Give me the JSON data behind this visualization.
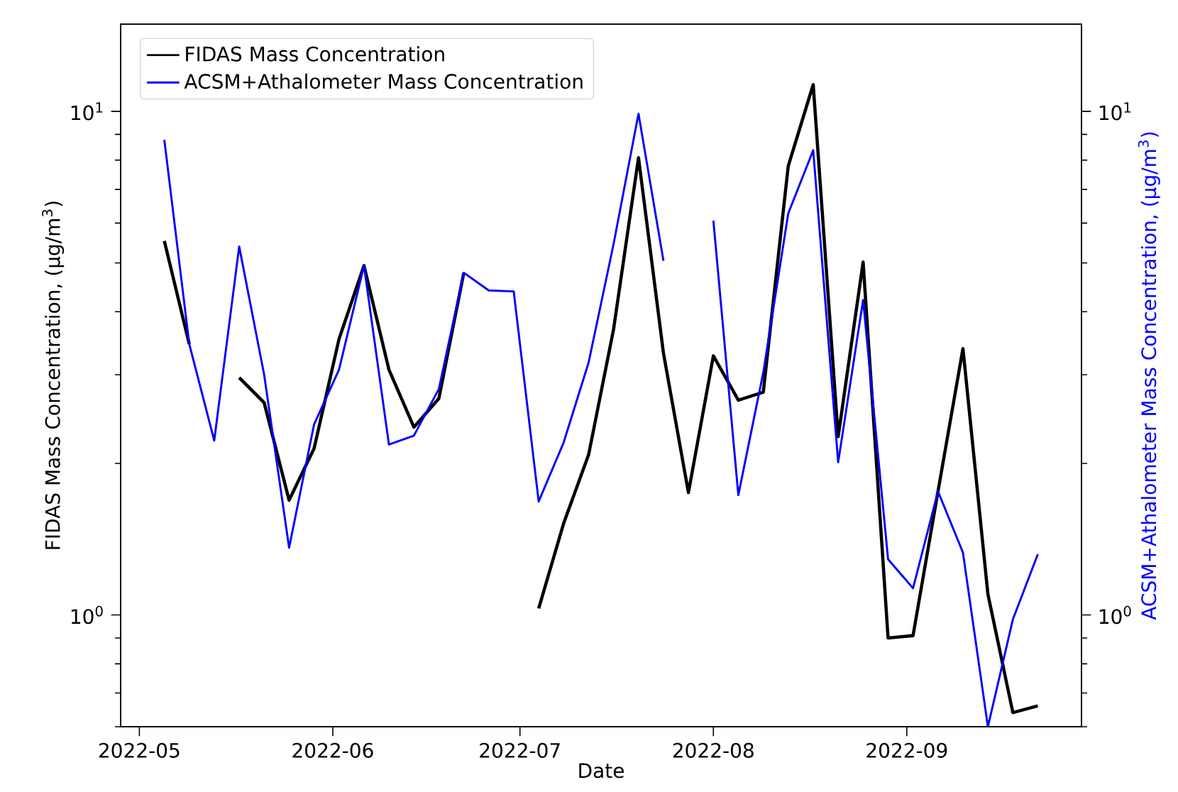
{
  "chart_data": {
    "type": "line",
    "xlabel": "Date",
    "ylabel": "FIDAS Mass Concentration, (μg/m$^{3}$)",
    "y2label": "ACSM+Athalometer Mass Concentration, (μg/m$^{3}$)",
    "x": [
      "2022-05-05",
      "2022-05-09",
      "2022-05-13",
      "2022-05-17",
      "2022-05-21",
      "2022-05-25",
      "2022-05-29",
      "2022-06-02",
      "2022-06-06",
      "2022-06-10",
      "2022-06-14",
      "2022-06-18",
      "2022-06-22",
      "2022-06-26",
      "2022-06-30",
      "2022-07-04",
      "2022-07-08",
      "2022-07-12",
      "2022-07-16",
      "2022-07-20",
      "2022-07-24",
      "2022-07-28",
      "2022-08-01",
      "2022-08-05",
      "2022-08-09",
      "2022-08-13",
      "2022-08-17",
      "2022-08-21",
      "2022-08-25",
      "2022-08-29",
      "2022-09-02",
      "2022-09-06",
      "2022-09-10",
      "2022-09-14",
      "2022-09-18",
      "2022-09-22"
    ],
    "series": [
      {
        "name": "FIDAS Mass Concentration",
        "color": "#000000",
        "values": [
          5.53,
          3.45,
          null,
          2.96,
          2.64,
          1.69,
          2.14,
          3.53,
          4.94,
          3.07,
          2.36,
          2.69,
          4.78,
          null,
          null,
          1.03,
          1.52,
          2.08,
          3.69,
          8.09,
          3.31,
          1.75,
          3.27,
          2.67,
          2.77,
          7.79,
          11.3,
          2.26,
          5.02,
          0.9,
          0.91,
          1.76,
          3.38,
          1.1,
          0.64,
          0.66
        ]
      },
      {
        "name": "ACSM+Athalometer Mass Concentration",
        "color": "#0000ff",
        "values": [
          8.78,
          3.45,
          2.22,
          5.39,
          3.0,
          1.36,
          2.39,
          3.07,
          4.94,
          2.18,
          2.27,
          2.81,
          4.78,
          4.41,
          4.39,
          1.68,
          2.2,
          3.17,
          5.45,
          9.89,
          5.05,
          null,
          6.07,
          1.73,
          3.03,
          6.27,
          8.37,
          2.01,
          4.22,
          1.29,
          1.13,
          1.76,
          1.33,
          0.6,
          0.98,
          1.32
        ]
      }
    ],
    "log": "y",
    "xlim": [
      "2022-04-28",
      "2022-09-29"
    ],
    "xticks": [
      {
        "value": "2022-05-01",
        "label": "2022-05"
      },
      {
        "value": "2022-06-01",
        "label": "2022-06"
      },
      {
        "value": "2022-07-01",
        "label": "2022-07"
      },
      {
        "value": "2022-08-01",
        "label": "2022-08"
      },
      {
        "value": "2022-09-01",
        "label": "2022-09"
      }
    ],
    "ylim": [
      0.6,
      14.9
    ],
    "yticks": [
      {
        "value": 1,
        "label": "10$^{0}$"
      },
      {
        "value": 10,
        "label": "10$^{1}$"
      }
    ],
    "legend": "top left",
    "grid": false
  }
}
